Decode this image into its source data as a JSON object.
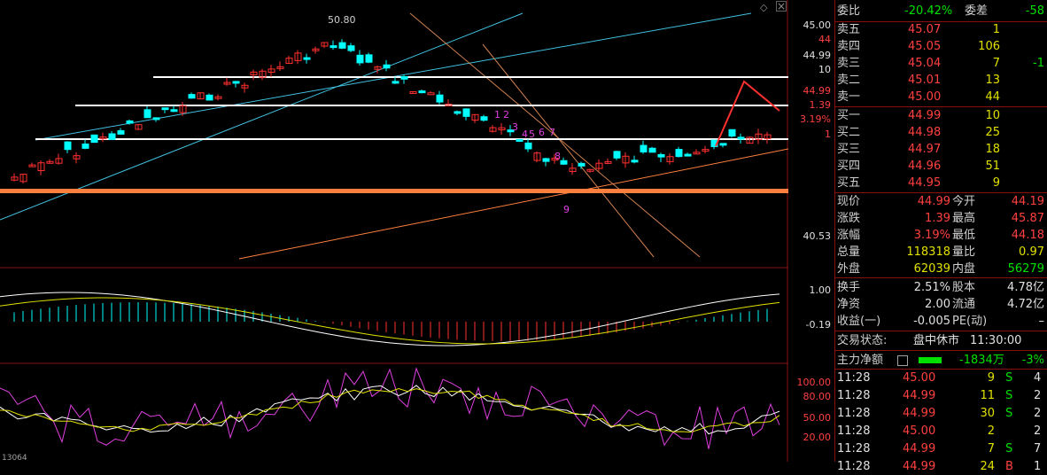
{
  "chart": {
    "high_marker": "50.80",
    "wave_labels": [
      "1",
      "2",
      "3",
      "4",
      "5",
      "6",
      "7",
      "8",
      "9"
    ],
    "axis_main": [
      "45.00",
      "44",
      "44.99",
      "10",
      "44.99",
      "1.39",
      "3.19%",
      "1",
      "40.53"
    ],
    "axis_macd": [
      "1.00",
      "-0.19"
    ],
    "axis_kdj": [
      "100.00",
      "80.00",
      "50.00",
      "20.00"
    ],
    "bottom_text": "13064",
    "colors": {
      "up": "#ff3030",
      "down": "#00ffff",
      "support": "#ff7f3f",
      "channel": "#40c0e0",
      "ma": "#ffffff"
    }
  },
  "panel": {
    "committee": {
      "label": "委比",
      "value": "-20.42%",
      "diff_label": "委差",
      "diff_value": "-58"
    },
    "asks": [
      {
        "label": "卖五",
        "price": "45.07",
        "vol": "1",
        "chg": ""
      },
      {
        "label": "卖四",
        "price": "45.05",
        "vol": "106",
        "chg": ""
      },
      {
        "label": "卖三",
        "price": "45.04",
        "vol": "7",
        "chg": "-1"
      },
      {
        "label": "卖二",
        "price": "45.01",
        "vol": "13",
        "chg": ""
      },
      {
        "label": "卖一",
        "price": "45.00",
        "vol": "44",
        "chg": ""
      }
    ],
    "bids": [
      {
        "label": "买一",
        "price": "44.99",
        "vol": "10"
      },
      {
        "label": "买二",
        "price": "44.98",
        "vol": "25"
      },
      {
        "label": "买三",
        "price": "44.97",
        "vol": "18"
      },
      {
        "label": "买四",
        "price": "44.96",
        "vol": "51"
      },
      {
        "label": "买五",
        "price": "44.95",
        "vol": "9"
      }
    ],
    "quote": [
      {
        "l1": "现价",
        "v1": "44.99",
        "l2": "今开",
        "v2": "44.19"
      },
      {
        "l1": "涨跌",
        "v1": "1.39",
        "l2": "最高",
        "v2": "45.87"
      },
      {
        "l1": "涨幅",
        "v1": "3.19%",
        "l2": "最低",
        "v2": "44.18"
      },
      {
        "l1": "总量",
        "v1": "118318",
        "l2": "量比",
        "v2": "0.97"
      },
      {
        "l1": "外盘",
        "v1": "62039",
        "l2": "内盘",
        "v2": "56279"
      }
    ],
    "fund": [
      {
        "l1": "换手",
        "v1": "2.51%",
        "l2": "股本",
        "v2": "4.78亿"
      },
      {
        "l1": "净资",
        "v1": "2.00",
        "l2": "流通",
        "v2": "4.72亿"
      },
      {
        "l1": "收益(一)",
        "v1": "-0.005",
        "l2": "PE(动)",
        "v2": "–"
      }
    ],
    "status": {
      "label": "交易状态:",
      "value": "盘中休市",
      "time": "11:30:00"
    },
    "main_force": {
      "label": "主力净额",
      "value": "-1834万",
      "pct": "-3%"
    },
    "ticks": [
      {
        "time": "11:28",
        "price": "45.00",
        "vol": "9",
        "side": "S",
        "n": "4"
      },
      {
        "time": "11:28",
        "price": "44.99",
        "vol": "11",
        "side": "S",
        "n": "2"
      },
      {
        "time": "11:28",
        "price": "44.99",
        "vol": "30",
        "side": "S",
        "n": "2"
      },
      {
        "time": "11:28",
        "price": "45.00",
        "vol": "2",
        "side": "",
        "n": "2"
      },
      {
        "time": "11:28",
        "price": "44.99",
        "vol": "7",
        "side": "S",
        "n": "7"
      },
      {
        "time": "11:28",
        "price": "44.99",
        "vol": "24",
        "side": "B",
        "n": "1"
      }
    ]
  }
}
